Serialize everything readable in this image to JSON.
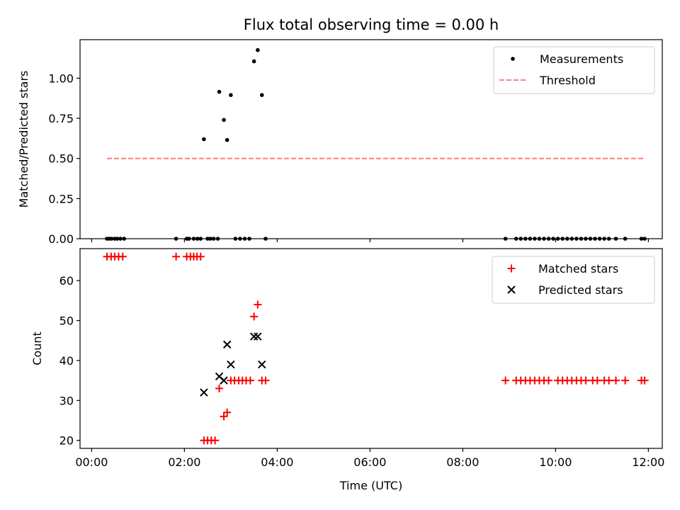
{
  "chart_data": {
    "type": "scatter",
    "title": "Flux total observing time = 0.00 h",
    "xlabel": "Time (UTC)",
    "xlim": [
      -0.25,
      12.3
    ],
    "xticks": [
      "00:00",
      "02:00",
      "04:00",
      "06:00",
      "08:00",
      "10:00",
      "12:00"
    ],
    "panels": [
      {
        "ylabel": "Matched/Predicted stars",
        "ylim": [
          0,
          1.24
        ],
        "yticks": [
          "0.00",
          "0.25",
          "0.50",
          "0.75",
          "1.00"
        ],
        "legend_position": "top-right",
        "series": [
          {
            "name": "Measurements",
            "marker": "dot",
            "color": "#000000",
            "x": [
              0.33,
              0.38,
              0.43,
              0.5,
              0.55,
              0.62,
              0.7,
              1.82,
              2.05,
              2.1,
              2.2,
              2.28,
              2.35,
              2.42,
              2.5,
              2.56,
              2.63,
              2.72,
              2.75,
              2.85,
              2.92,
              3.0,
              3.1,
              3.2,
              3.3,
              3.4,
              3.5,
              3.58,
              3.67,
              3.75,
              8.92,
              9.15,
              9.25,
              9.35,
              9.45,
              9.55,
              9.65,
              9.75,
              9.85,
              9.95,
              10.05,
              10.15,
              10.25,
              10.35,
              10.45,
              10.55,
              10.65,
              10.75,
              10.85,
              10.95,
              11.05,
              11.15,
              11.3,
              11.5,
              11.85,
              11.92
            ],
            "y": [
              0,
              0,
              0,
              0,
              0,
              0,
              0,
              0,
              0,
              0,
              0,
              0,
              0,
              0.62,
              0,
              0,
              0,
              0,
              0.915,
              0.74,
              0.615,
              0.895,
              0,
              0,
              0,
              0,
              1.105,
              1.175,
              0.895,
              0,
              0,
              0,
              0,
              0,
              0,
              0,
              0,
              0,
              0,
              0,
              0,
              0,
              0,
              0,
              0,
              0,
              0,
              0,
              0,
              0,
              0,
              0,
              0,
              0,
              0,
              0
            ]
          },
          {
            "name": "Threshold",
            "style": "dashed-line",
            "color": "#ff7f7f",
            "x": [
              0.33,
              11.92
            ],
            "y": [
              0.5,
              0.5
            ]
          }
        ]
      },
      {
        "ylabel": "Count",
        "ylim": [
          18,
          68
        ],
        "yticks": [
          "20",
          "30",
          "40",
          "50",
          "60"
        ],
        "legend_position": "top-right",
        "series": [
          {
            "name": "Matched stars",
            "marker": "plus",
            "color": "#ff0000",
            "x": [
              0.33,
              0.42,
              0.5,
              0.58,
              0.67,
              1.82,
              2.05,
              2.13,
              2.2,
              2.27,
              2.35,
              2.42,
              2.5,
              2.58,
              2.66,
              2.75,
              2.85,
              2.92,
              3.0,
              3.08,
              3.17,
              3.25,
              3.33,
              3.42,
              3.5,
              3.58,
              3.67,
              3.75,
              8.92,
              9.15,
              9.25,
              9.35,
              9.45,
              9.55,
              9.65,
              9.75,
              9.85,
              10.05,
              10.15,
              10.25,
              10.35,
              10.45,
              10.55,
              10.65,
              10.8,
              10.9,
              11.05,
              11.15,
              11.3,
              11.5,
              11.85,
              11.92
            ],
            "y": [
              66,
              66,
              66,
              66,
              66,
              66,
              66,
              66,
              66,
              66,
              66,
              20,
              20,
              20,
              20,
              33,
              26,
              27,
              35,
              35,
              35,
              35,
              35,
              35,
              51,
              54,
              35,
              35,
              35,
              35,
              35,
              35,
              35,
              35,
              35,
              35,
              35,
              35,
              35,
              35,
              35,
              35,
              35,
              35,
              35,
              35,
              35,
              35,
              35,
              35,
              35,
              35
            ]
          },
          {
            "name": "Predicted stars",
            "marker": "x",
            "color": "#000000",
            "x": [
              2.42,
              2.75,
              2.85,
              2.92,
              3.0,
              3.5,
              3.58,
              3.67
            ],
            "y": [
              32,
              36,
              35,
              44,
              39,
              46,
              46,
              39
            ]
          }
        ]
      }
    ]
  }
}
